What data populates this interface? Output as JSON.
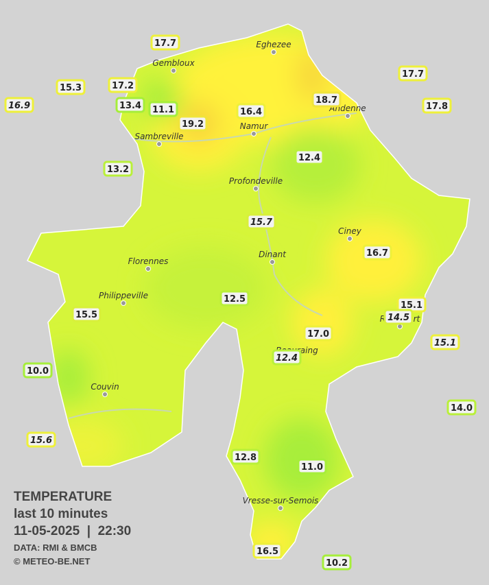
{
  "legend": {
    "title": "TEMPERATURE",
    "subtitle": "last 10 minutes",
    "datetime": "11-05-2025  |  22:30",
    "source": "DATA: RMI & BMCB",
    "credit": "© METEO-BE.NET"
  },
  "towns": [
    "Eghezee",
    "Gembloux",
    "Andenne",
    "Namur",
    "Sambreville",
    "Profondeville",
    "Ciney",
    "Dinant",
    "Florennes",
    "Philippeville",
    "Rochefort",
    "Beauraing",
    "Couvin",
    "Vresse-sur-Semois"
  ],
  "stations": [
    {
      "label": "17.7",
      "color": "#eef03a"
    },
    {
      "label": "15.3",
      "color": "#eef03a"
    },
    {
      "label": "16.9",
      "color": "#eef03a",
      "italic": true
    },
    {
      "label": "17.2",
      "color": "#eef03a"
    },
    {
      "label": "13.4",
      "color": "#a6ee3a"
    },
    {
      "label": "11.1",
      "color": "#a6ee3a"
    },
    {
      "label": "19.2",
      "color": "#f0e43a"
    },
    {
      "label": "16.4",
      "color": "#eef03a"
    },
    {
      "label": "18.7",
      "color": "#f0e43a"
    },
    {
      "label": "17.7",
      "color": "#eef03a"
    },
    {
      "label": "17.8",
      "color": "#eef03a"
    },
    {
      "label": "12.4",
      "color": "#b9f03a"
    },
    {
      "label": "13.2",
      "color": "#b9f03a"
    },
    {
      "label": "15.7",
      "color": "#d8f03a",
      "italic": true
    },
    {
      "label": "16.7",
      "color": "#eef03a"
    },
    {
      "label": "12.5",
      "color": "#b9f03a"
    },
    {
      "label": "15.1",
      "color": "#eef03a"
    },
    {
      "label": "14.5",
      "color": "#d8f03a",
      "italic": true
    },
    {
      "label": "15.5",
      "color": "#d8f03a"
    },
    {
      "label": "17.0",
      "color": "#eef03a"
    },
    {
      "label": "15.1",
      "color": "#eef03a",
      "italic": true
    },
    {
      "label": "12.4",
      "color": "#b9f03a",
      "italic": true
    },
    {
      "label": "10.0",
      "color": "#a6ee3a"
    },
    {
      "label": "14.0",
      "color": "#b9f03a"
    },
    {
      "label": "15.6",
      "color": "#eef03a",
      "italic": true
    },
    {
      "label": "12.8",
      "color": "#b9f03a"
    },
    {
      "label": "11.0",
      "color": "#a6ee3a"
    },
    {
      "label": "16.5",
      "color": "#eef03a"
    },
    {
      "label": "10.2",
      "color": "#a6ee3a"
    }
  ]
}
